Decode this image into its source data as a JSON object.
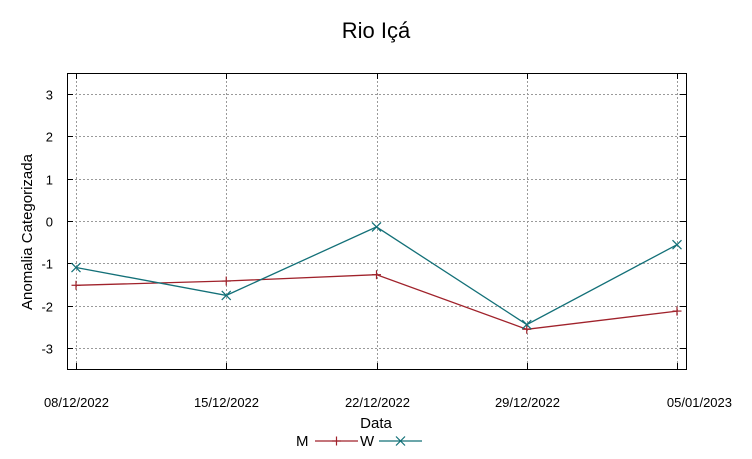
{
  "chart_data": {
    "type": "line",
    "title": "Rio Içá",
    "xlabel": "Data",
    "ylabel": "Anomalia Categorizada",
    "categories": [
      "08/12/2022",
      "15/12/2022",
      "22/12/2022",
      "29/12/2022",
      "05/01/2023"
    ],
    "ylim": [
      -3.5,
      3.5
    ],
    "yticks": [
      3,
      2,
      1,
      0,
      -1,
      -2,
      -3
    ],
    "ytick_labels": [
      "3",
      "2",
      "1",
      "0",
      "-1",
      "-2",
      "-3"
    ],
    "grid": true,
    "legend_position": "bottom",
    "series": [
      {
        "name": "M",
        "color": "#a0222b",
        "marker": "plus",
        "values": [
          -1.52,
          -1.42,
          -1.27,
          -2.56,
          -2.13
        ]
      },
      {
        "name": "W",
        "color": "#137078",
        "marker": "cross",
        "values": [
          -1.1,
          -1.76,
          -0.14,
          -2.45,
          -0.56
        ]
      }
    ]
  }
}
